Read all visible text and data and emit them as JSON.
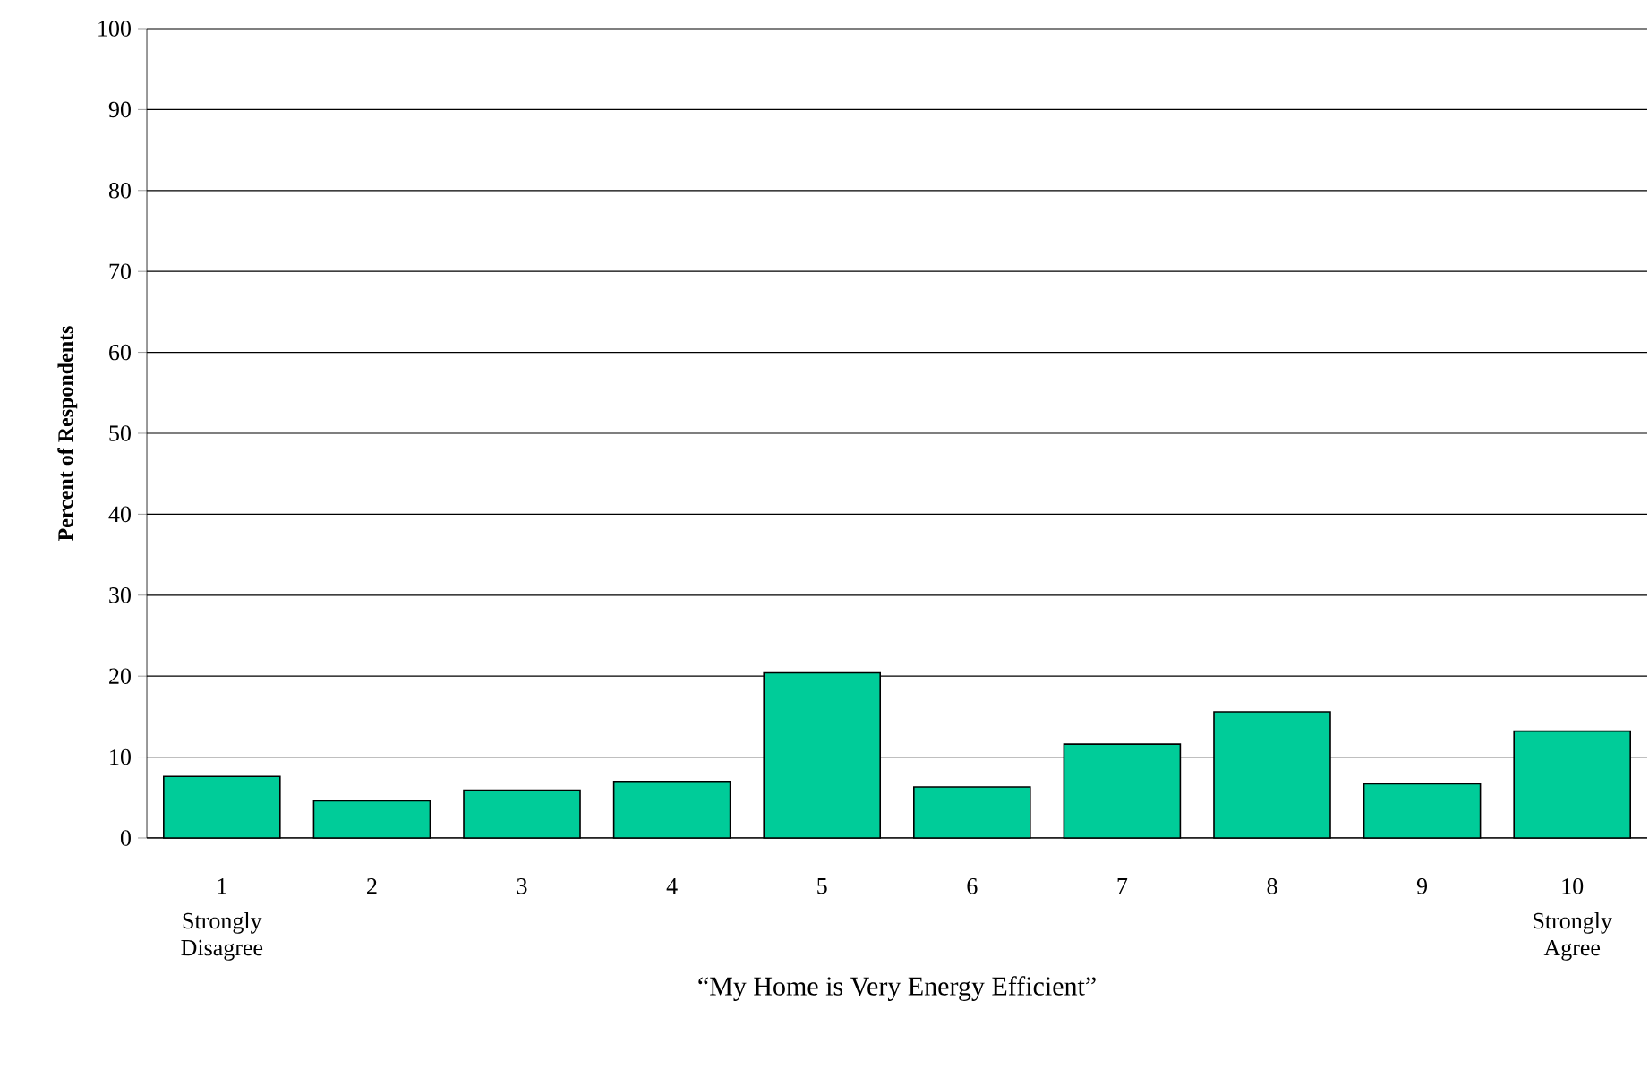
{
  "chart_data": {
    "type": "bar",
    "categories": [
      "1",
      "2",
      "3",
      "4",
      "5",
      "6",
      "7",
      "8",
      "9",
      "10"
    ],
    "values": [
      7.6,
      4.6,
      5.9,
      7.0,
      20.4,
      6.3,
      11.6,
      15.6,
      6.7,
      13.2
    ],
    "color": "#00cc99",
    "xlabel": "“My Home is Very Energy Efficient”",
    "ylabel": "Percent of Respondents",
    "ylim": [
      0,
      100
    ],
    "yticks": [
      0,
      10,
      20,
      30,
      40,
      50,
      60,
      70,
      80,
      90,
      100
    ],
    "grid": "y",
    "annotations": [
      "Strongly Disagree",
      "Strongly Agree"
    ]
  }
}
